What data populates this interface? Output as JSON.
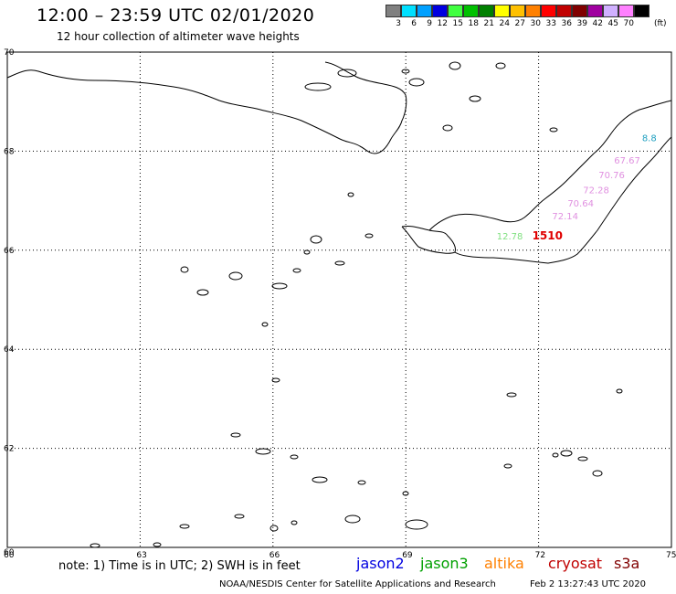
{
  "header": {
    "title": "12:00 – 23:59 UTC 02/01/2020",
    "subtitle": "12 hour collection of altimeter wave heights"
  },
  "legend": {
    "unit": "(ft)",
    "items": [
      {
        "label": "3",
        "color": "#808080"
      },
      {
        "label": "6",
        "color": "#00e0ff"
      },
      {
        "label": "9",
        "color": "#00a0ff"
      },
      {
        "label": "12",
        "color": "#0000e0"
      },
      {
        "label": "15",
        "color": "#40ff40"
      },
      {
        "label": "18",
        "color": "#00c000"
      },
      {
        "label": "21",
        "color": "#008000"
      },
      {
        "label": "24",
        "color": "#ffff00"
      },
      {
        "label": "27",
        "color": "#ffc000"
      },
      {
        "label": "30",
        "color": "#ff8000"
      },
      {
        "label": "33",
        "color": "#ff0000"
      },
      {
        "label": "36",
        "color": "#c00000"
      },
      {
        "label": "39",
        "color": "#800000"
      },
      {
        "label": "42",
        "color": "#a000a0"
      },
      {
        "label": "45",
        "color": "#d0b0ff"
      },
      {
        "label": "70",
        "color": "#ff80ff"
      },
      {
        "label": "",
        "color": "#000000"
      }
    ]
  },
  "map": {
    "lat_labels": [
      "70",
      "68",
      "66",
      "64",
      "62",
      "60"
    ],
    "lon_labels": [
      "60",
      "63",
      "66",
      "69",
      "72",
      "75"
    ],
    "observations": [
      {
        "value": "8.8",
        "lon": 74.5,
        "lat": 68.2,
        "color": "#20a0c0"
      },
      {
        "value": "67.67",
        "lon": 74.0,
        "lat": 67.75,
        "color": "#e090e0"
      },
      {
        "value": "70.76",
        "lon": 73.65,
        "lat": 67.45,
        "color": "#e090e0"
      },
      {
        "value": "72.28",
        "lon": 73.3,
        "lat": 67.15,
        "color": "#e090e0"
      },
      {
        "value": "70.64",
        "lon": 72.95,
        "lat": 66.88,
        "color": "#e090e0"
      },
      {
        "value": "72.14",
        "lon": 72.6,
        "lat": 66.62,
        "color": "#e090e0"
      },
      {
        "value": "12.78",
        "lon": 71.35,
        "lat": 66.22,
        "color": "#80e080"
      },
      {
        "value": "1510",
        "lon": 72.2,
        "lat": 66.22,
        "color": "#e00000"
      }
    ]
  },
  "footer": {
    "note": "note: 1) Time is in UTC; 2) SWH is in feet",
    "satellites": [
      {
        "name": "jason2",
        "color": "#0000e0"
      },
      {
        "name": "jason3",
        "color": "#00a000"
      },
      {
        "name": "altika",
        "color": "#ff8000"
      },
      {
        "name": "cryosat",
        "color": "#c00000"
      },
      {
        "name": "s3a",
        "color": "#800000"
      }
    ],
    "credit": "NOAA/NESDIS Center for Satellite Applications and Research",
    "generated": "Feb  2 13:27:43 UTC 2020"
  }
}
